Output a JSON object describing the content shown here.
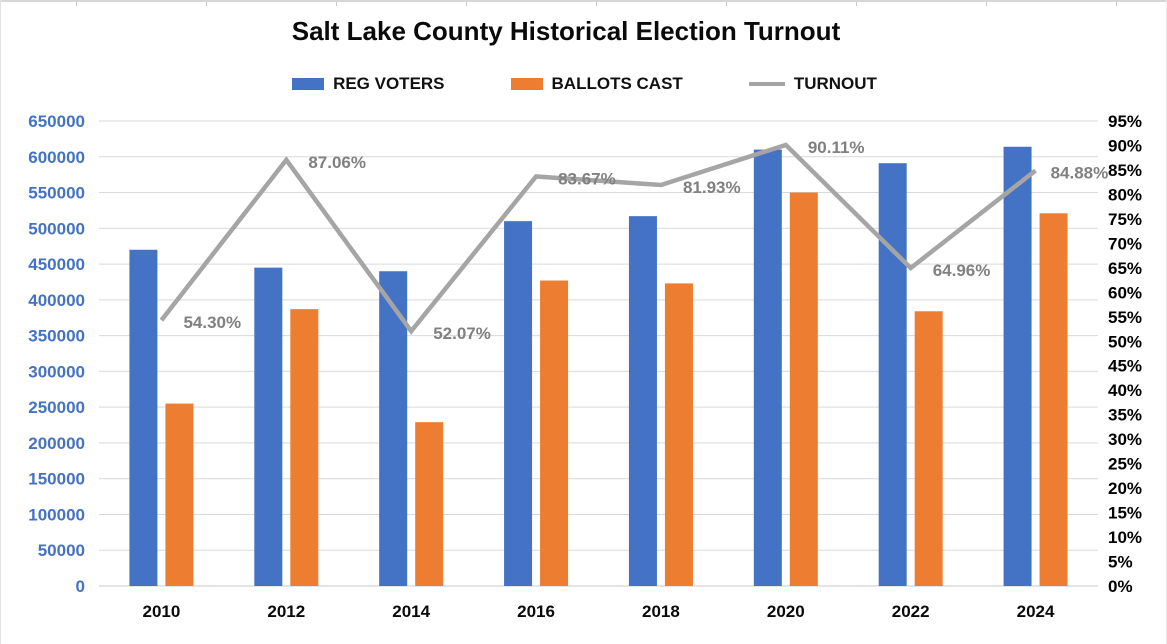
{
  "chart_data": {
    "type": "bar",
    "subtype": "combo-bar-line",
    "title": "Salt Lake County Historical Election Turnout",
    "categories": [
      "2010",
      "2012",
      "2014",
      "2016",
      "2018",
      "2020",
      "2022",
      "2024"
    ],
    "series": [
      {
        "name": "REG VOTERS",
        "type": "bar",
        "axis": "left",
        "color": "#4472C4",
        "values": [
          470000,
          445000,
          440000,
          510000,
          517000,
          610000,
          591000,
          614000
        ]
      },
      {
        "name": "BALLOTS CAST",
        "type": "bar",
        "axis": "left",
        "color": "#ED7D31",
        "values": [
          255000,
          387000,
          229000,
          427000,
          423000,
          550000,
          384000,
          521000
        ]
      },
      {
        "name": "TURNOUT",
        "type": "line",
        "axis": "right",
        "color": "#A5A5A5",
        "label_color": "#808080",
        "values": [
          54.3,
          87.06,
          52.07,
          83.67,
          81.93,
          90.11,
          64.96,
          84.88
        ],
        "point_labels": [
          "54.30%",
          "87.06%",
          "52.07%",
          "83.67%",
          "81.93%",
          "90.11%",
          "64.96%",
          "84.88%"
        ]
      }
    ],
    "left_axis": {
      "min": 0,
      "max": 650000,
      "step": 50000,
      "label_color": "#4472C4",
      "tick_labels": [
        "0",
        "50000",
        "100000",
        "150000",
        "200000",
        "250000",
        "300000",
        "350000",
        "400000",
        "450000",
        "500000",
        "550000",
        "600000",
        "650000"
      ]
    },
    "right_axis": {
      "min": 0,
      "max": 95,
      "step": 5,
      "label_color": "#000000",
      "tick_labels": [
        "0%",
        "5%",
        "10%",
        "15%",
        "20%",
        "25%",
        "30%",
        "35%",
        "40%",
        "45%",
        "50%",
        "55%",
        "60%",
        "65%",
        "70%",
        "75%",
        "80%",
        "85%",
        "90%",
        "95%"
      ]
    },
    "legend": {
      "position": "top",
      "entries": [
        "REG VOTERS",
        "BALLOTS CAST",
        "TURNOUT"
      ]
    },
    "gridlines": {
      "horizontal": true,
      "color": "#D9D9D9"
    },
    "axis_line_color": "#C9C9C9"
  }
}
